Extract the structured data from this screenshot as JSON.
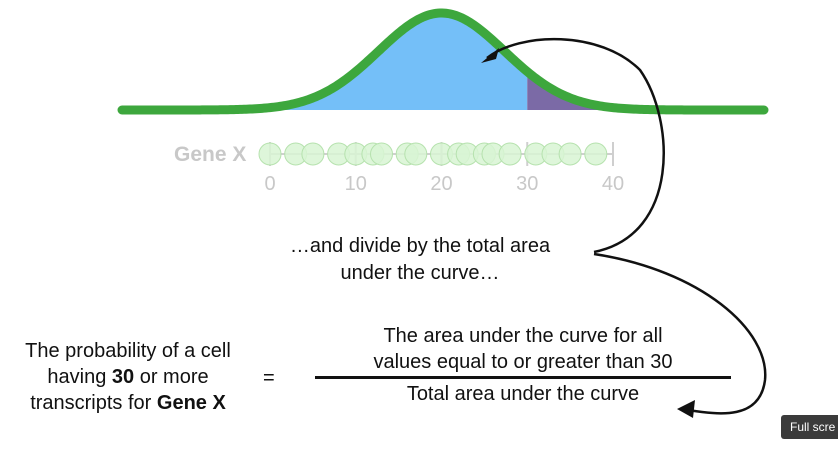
{
  "diagram": {
    "gene_label": "Gene X",
    "axis_ticks": [
      "0",
      "10",
      "20",
      "30",
      "40"
    ],
    "caption_lines": [
      "…and divide by the total area",
      "under the curve…"
    ],
    "probability": {
      "line1": "The probability of a cell",
      "line2_before": "having ",
      "line2_bold": "30",
      "line2_after": " or more",
      "line3_before": "transcripts for ",
      "line3_bold": "Gene X"
    },
    "equals": "=",
    "numerator_lines": [
      "The area under the curve for all",
      "values equal to or greater than 30"
    ],
    "denominator": "Total area under the curve"
  },
  "distribution": {
    "mean": 20,
    "axis_range": [
      0,
      40
    ],
    "threshold": 30,
    "observations": [
      0,
      3,
      5,
      8,
      10,
      12,
      13,
      16,
      17,
      20,
      22,
      23,
      25,
      26,
      28,
      31,
      33,
      35,
      38
    ]
  },
  "colors": {
    "curve": "#3da73d",
    "area_below": "#74bff8",
    "area_above": "#7b6aa6",
    "points": "#d8f5d3",
    "points_stroke": "#b6e2ae",
    "axis": "#cfcfcf"
  },
  "controls": {
    "fullscreen_label": "Full scre"
  }
}
